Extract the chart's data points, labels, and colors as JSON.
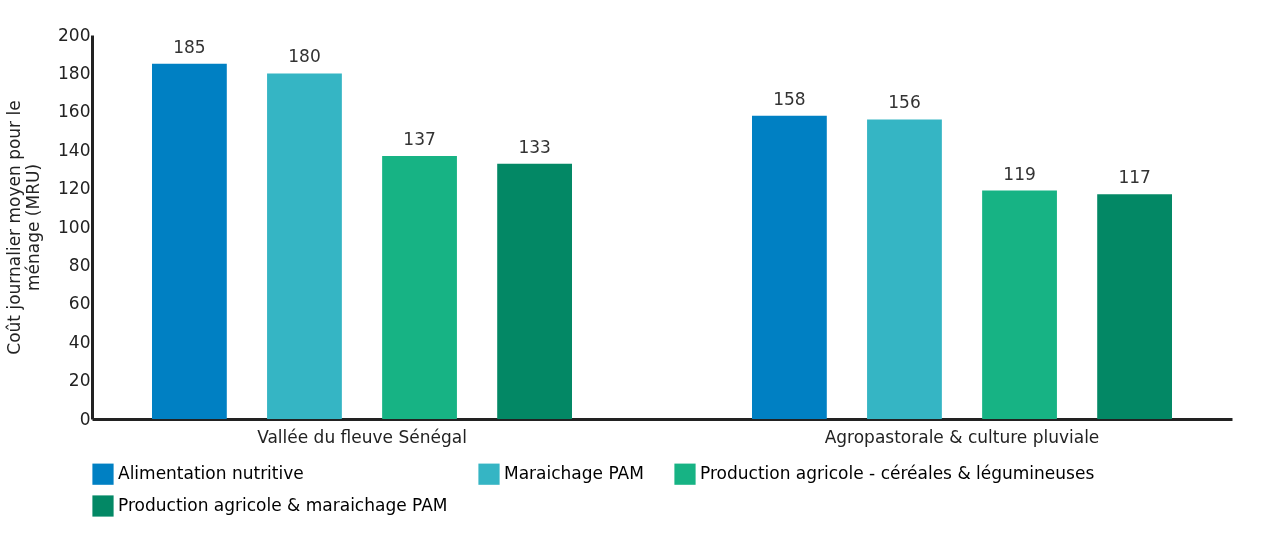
{
  "chart_data": {
    "type": "bar",
    "ylabel": "Coût journalier moyen pour le ménage (MRU)",
    "categories": [
      "Vallée du fleuve Sénégal",
      "Agropastorale & culture pluviale"
    ],
    "series": [
      {
        "name": "Alimentation nutritive",
        "color": "#0080c3",
        "values": [
          185,
          158
        ]
      },
      {
        "name": "Maraichage PAM",
        "color": "#35b5c4",
        "values": [
          180,
          156
        ]
      },
      {
        "name": "Production agricole - céréales & légumineuses",
        "color": "#17b384",
        "values": [
          137,
          119
        ]
      },
      {
        "name": "Production agricole & maraichage PAM",
        "color": "#038865",
        "values": [
          133,
          117
        ]
      }
    ],
    "data_labels": true,
    "ylim": [
      0,
      200
    ],
    "yticks": [
      0,
      20,
      40,
      60,
      80,
      100,
      120,
      140,
      160,
      180,
      200
    ],
    "grid": false,
    "legend": "bottom"
  }
}
